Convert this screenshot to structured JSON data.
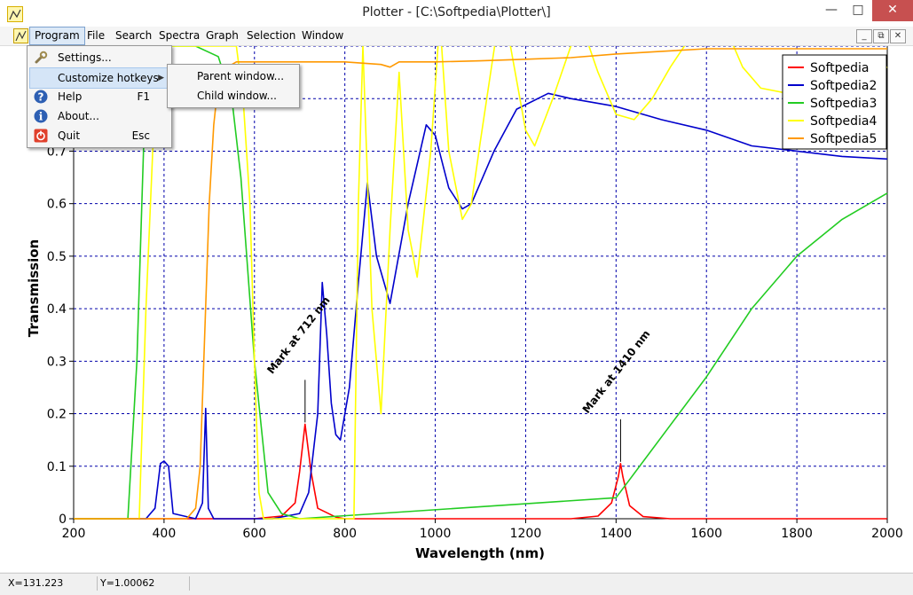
{
  "window": {
    "title": "Plotter - [C:\\Softpedia\\Plotter\\]"
  },
  "menubar": {
    "items": [
      "Program",
      "File",
      "Search",
      "Spectra",
      "Graph",
      "Selection",
      "Window"
    ]
  },
  "program_menu": {
    "items": [
      {
        "label": "Settings...",
        "key": "",
        "icon": "wrench-icon"
      },
      {
        "label": "Customize hotkeys",
        "key": "",
        "icon": "",
        "submenu": true
      },
      {
        "label": "Help",
        "key": "F1",
        "icon": "help-icon"
      },
      {
        "label": "About...",
        "key": "",
        "icon": "info-icon"
      },
      {
        "label": "Quit",
        "key": "Esc",
        "icon": "quit-icon"
      }
    ]
  },
  "submenu": {
    "items": [
      "Parent window...",
      "Child window..."
    ]
  },
  "statusbar": {
    "x": "X=131.223",
    "y": "Y=1.00062"
  },
  "chart_data": {
    "type": "line",
    "xlabel": "Wavelength (nm)",
    "ylabel": "Transmission",
    "xlim": [
      200,
      2000
    ],
    "ylim": [
      0,
      0.9
    ],
    "xticks": [
      "200",
      "400",
      "600",
      "800",
      "1000",
      "1200",
      "1400",
      "1600",
      "1800",
      "2000"
    ],
    "yticks": [
      "0",
      "0.1",
      "0.2",
      "0.3",
      "0.4",
      "0.5",
      "0.6",
      "0.7"
    ],
    "grid": true,
    "legend_position": "top-right",
    "series": [
      {
        "name": "Softpedia",
        "color": "#ff0000",
        "x": [
          200,
          600,
          660,
          690,
          700,
          712,
          725,
          740,
          780,
          800,
          1300,
          1360,
          1390,
          1405,
          1410,
          1415,
          1430,
          1460,
          1520,
          2000
        ],
        "y": [
          0,
          0,
          0.005,
          0.03,
          0.09,
          0.18,
          0.09,
          0.02,
          0.003,
          0,
          0,
          0.005,
          0.03,
          0.08,
          0.105,
          0.08,
          0.025,
          0.004,
          0,
          0
        ]
      },
      {
        "name": "Softpedia2",
        "color": "#0000cc",
        "x": [
          200,
          360,
          380,
          392,
          400,
          410,
          420,
          470,
          485,
          492,
          498,
          510,
          640,
          700,
          720,
          740,
          750,
          760,
          770,
          780,
          790,
          810,
          830,
          850,
          870,
          900,
          940,
          980,
          1000,
          1030,
          1060,
          1080,
          1130,
          1180,
          1250,
          1300,
          1400,
          1500,
          1600,
          1700,
          1800,
          1900,
          2000
        ],
        "y": [
          0,
          0,
          0.02,
          0.105,
          0.11,
          0.1,
          0.01,
          0,
          0.03,
          0.21,
          0.02,
          0,
          0,
          0.01,
          0.05,
          0.2,
          0.45,
          0.35,
          0.22,
          0.16,
          0.15,
          0.25,
          0.45,
          0.64,
          0.5,
          0.41,
          0.6,
          0.75,
          0.73,
          0.63,
          0.59,
          0.6,
          0.7,
          0.78,
          0.81,
          0.8,
          0.785,
          0.76,
          0.74,
          0.71,
          0.7,
          0.69,
          0.685
        ]
      },
      {
        "name": "Softpedia3",
        "color": "#22cc22",
        "x": [
          200,
          320,
          340,
          360,
          380,
          420,
          470,
          520,
          550,
          570,
          600,
          630,
          660,
          700,
          1400,
          1600,
          1700,
          1800,
          1900,
          2000
        ],
        "y": [
          0,
          0,
          0.3,
          0.85,
          0.9,
          0.9,
          0.9,
          0.88,
          0.8,
          0.65,
          0.3,
          0.05,
          0.01,
          0,
          0.04,
          0.27,
          0.4,
          0.5,
          0.57,
          0.62
        ]
      },
      {
        "name": "Softpedia4",
        "color": "#ffff00",
        "x": [
          200,
          345,
          360,
          385,
          440,
          560,
          575,
          590,
          600,
          610,
          620,
          820,
          830,
          840,
          860,
          880,
          900,
          920,
          940,
          960,
          990,
          1010,
          1030,
          1060,
          1080,
          1100,
          1140,
          1160,
          1200,
          1220,
          1260,
          1320,
          1360,
          1400,
          1440,
          1480,
          1520,
          1590,
          1640,
          1680,
          1720,
          1780,
          1840,
          1900,
          1960,
          2000
        ],
        "y": [
          0,
          0,
          0.4,
          0.9,
          0.9,
          0.9,
          0.8,
          0.6,
          0.3,
          0.05,
          0,
          0,
          0.6,
          0.9,
          0.4,
          0.2,
          0.55,
          0.85,
          0.55,
          0.46,
          0.7,
          0.95,
          0.7,
          0.57,
          0.6,
          0.72,
          0.95,
          0.93,
          0.74,
          0.71,
          0.8,
          0.95,
          0.85,
          0.77,
          0.76,
          0.8,
          0.86,
          0.95,
          0.94,
          0.86,
          0.82,
          0.81,
          0.82,
          0.84,
          0.85,
          0.86
        ]
      },
      {
        "name": "Softpedia5",
        "color": "#ff9900",
        "x": [
          200,
          450,
          470,
          480,
          490,
          500,
          510,
          520,
          540,
          560,
          600,
          700,
          800,
          880,
          900,
          920,
          1000,
          1100,
          1200,
          1300,
          1400,
          1500,
          1600,
          1700,
          1800,
          1900,
          2000
        ],
        "y": [
          0,
          0,
          0.02,
          0.1,
          0.35,
          0.6,
          0.75,
          0.83,
          0.86,
          0.87,
          0.87,
          0.87,
          0.87,
          0.865,
          0.86,
          0.87,
          0.87,
          0.872,
          0.875,
          0.878,
          0.885,
          0.89,
          0.895,
          0.895,
          0.895,
          0.895,
          0.895
        ]
      }
    ],
    "annotations": [
      {
        "text": "Mark at 712 nm",
        "x": 712,
        "y": 0.18
      },
      {
        "text": "Mark at 1410 nm",
        "x": 1410,
        "y": 0.105
      }
    ]
  }
}
